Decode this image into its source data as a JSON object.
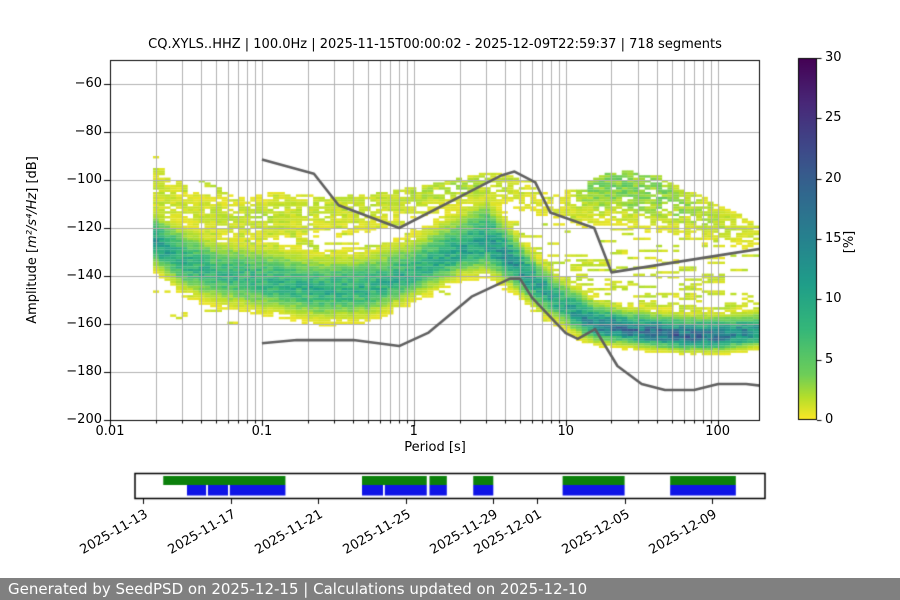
{
  "figure": {
    "title": "CQ.XYLS..HHZ | 100.0Hz | 2025-11-15T00:00:02 - 2025-12-09T22:59:37 | 718 segments",
    "footer": {
      "text": "Generated by SeedPSD on 2025-12-15 | Calculations updated on 2025-12-10",
      "bg_color": "#808080",
      "text_color": "#ffffff"
    }
  },
  "chart_data": {
    "type": "heatmap",
    "title": "CQ.XYLS..HHZ | 100.0Hz | 2025-11-15T00:00:02 - 2025-12-09T22:59:37 | 718 segments",
    "xlabel": "Period [s]",
    "ylabel": {
      "prefix": "Amplitude [",
      "math": "m²/s⁴/Hz",
      "suffix": "] [dB]"
    },
    "xlim": [
      0.01,
      190
    ],
    "ylim": [
      -200,
      -50
    ],
    "grid_color": "#b0b0b0",
    "x_ticks": [
      {
        "v": 0.01,
        "label": "0.01"
      },
      {
        "v": 0.1,
        "label": "0.1"
      },
      {
        "v": 1,
        "label": "1"
      },
      {
        "v": 10,
        "label": "10"
      },
      {
        "v": 100,
        "label": "100"
      }
    ],
    "y_ticks": [
      {
        "v": -60,
        "label": "−60"
      },
      {
        "v": -80,
        "label": "−80"
      },
      {
        "v": -100,
        "label": "−100"
      },
      {
        "v": -120,
        "label": "−120"
      },
      {
        "v": -140,
        "label": "−140"
      },
      {
        "v": -160,
        "label": "−160"
      },
      {
        "v": -180,
        "label": "−180"
      },
      {
        "v": -200,
        "label": "−200"
      }
    ],
    "colorbar": {
      "label": "[%]",
      "min": 0,
      "max": 30,
      "ticks": [
        0,
        5,
        10,
        15,
        20,
        25,
        30
      ],
      "viridis_stops": [
        [
          0.0,
          "#440154"
        ],
        [
          0.125,
          "#482878"
        ],
        [
          0.25,
          "#3e4989"
        ],
        [
          0.375,
          "#31688e"
        ],
        [
          0.5,
          "#26828e"
        ],
        [
          0.625,
          "#1f9e89"
        ],
        [
          0.75,
          "#35b779"
        ],
        [
          0.875,
          "#6ece58"
        ],
        [
          0.9375,
          "#b5de2b"
        ],
        [
          1.0,
          "#fde725"
        ]
      ]
    },
    "noise_models": {
      "color": "#606060",
      "width": 2.6,
      "nlnm": [
        [
          0.1,
          -168.0
        ],
        [
          0.17,
          -166.7
        ],
        [
          0.4,
          -166.7
        ],
        [
          0.8,
          -169.2
        ],
        [
          1.24,
          -163.7
        ],
        [
          2.4,
          -148.6
        ],
        [
          4.3,
          -141.1
        ],
        [
          5.0,
          -141.1
        ],
        [
          6.0,
          -149.0
        ],
        [
          10.0,
          -163.8
        ],
        [
          12.0,
          -166.2
        ],
        [
          15.6,
          -162.1
        ],
        [
          21.9,
          -177.5
        ],
        [
          31.6,
          -185.0
        ],
        [
          45.0,
          -187.5
        ],
        [
          70.0,
          -187.5
        ],
        [
          101.0,
          -185.0
        ],
        [
          154.0,
          -185.0
        ],
        [
          328.0,
          -187.5
        ]
      ],
      "nhnm": [
        [
          0.1,
          -91.5
        ],
        [
          0.22,
          -97.4
        ],
        [
          0.32,
          -110.5
        ],
        [
          0.8,
          -120.0
        ],
        [
          3.8,
          -98.0
        ],
        [
          4.6,
          -96.5
        ],
        [
          6.3,
          -101.0
        ],
        [
          7.9,
          -113.5
        ],
        [
          15.4,
          -120.0
        ],
        [
          20.0,
          -138.5
        ],
        [
          354.8,
          -126.0
        ]
      ]
    },
    "ppsd": {
      "seed": 7,
      "period_start_edge": 0.0192,
      "step_decades": 0.037628,
      "n_cols": 106,
      "db_bin": 1,
      "control": {
        "logp": [
          -1.7,
          -1.52,
          -1.3,
          -1.0,
          -0.6,
          -0.3,
          0.0,
          0.3,
          0.48,
          0.65,
          0.8,
          1.0,
          1.1,
          1.2,
          1.4,
          1.6,
          1.8,
          2.0,
          2.25
        ],
        "mode": [
          -126,
          -134,
          -139,
          -142,
          -146,
          -145,
          -139,
          -130,
          -126,
          -134,
          -143,
          -153,
          -157,
          -160.5,
          -162.5,
          -164,
          -165,
          -165,
          -163.5
        ],
        "amp": [
          12,
          9,
          8,
          8.5,
          9,
          9,
          9,
          10,
          11,
          13,
          12,
          10,
          13,
          15,
          17,
          18,
          18,
          17,
          13
        ],
        "sigma_hi": [
          6,
          7,
          7,
          7,
          7,
          7,
          7,
          8,
          9,
          6,
          5,
          5,
          5,
          4.5,
          4,
          4,
          4,
          4,
          4
        ],
        "sigma_lo": [
          5,
          6,
          6,
          6,
          6,
          6,
          5,
          5,
          6,
          5,
          5,
          4,
          4,
          3.5,
          3,
          3,
          3,
          3,
          3
        ],
        "upper_cap": [
          -90,
          -98,
          -102,
          -104,
          -107,
          -106,
          -103,
          -99,
          -97,
          -97,
          -99,
          -104,
          -104,
          -98,
          -96,
          -98,
          -104,
          -110,
          -118
        ],
        "lower_cap": [
          -158,
          -160,
          -160,
          -160,
          -158,
          -156,
          -152,
          -150,
          -150,
          -153,
          -158,
          -166,
          -168,
          -170,
          -171,
          -172,
          -172,
          -171,
          -170
        ],
        "mode2": [
          -103,
          -112,
          -115,
          -116,
          -112,
          -110,
          -106,
          -103,
          -102,
          -104,
          -110,
          -112,
          -106,
          -103,
          -103,
          -106,
          -112,
          -117,
          -122
        ],
        "sigma2": [
          5,
          5,
          5,
          6,
          7,
          7,
          6,
          5,
          5,
          5,
          4,
          5,
          7,
          8,
          8,
          8,
          7,
          6,
          5
        ],
        "amp2": [
          1.5,
          1.2,
          1.5,
          1.8,
          1.5,
          1.5,
          1.8,
          2.2,
          2.0,
          1.2,
          0.7,
          1.0,
          2.2,
          3.5,
          3.8,
          3.5,
          2.5,
          1.8,
          1.2
        ]
      },
      "diag_streaks": [
        {
          "lp1": -1.71,
          "db1": -95,
          "lp2": -0.55,
          "db2": -143
        },
        {
          "lp1": -1.6,
          "db1": -106,
          "lp2": -0.7,
          "db2": -139
        },
        {
          "lp1": -1.4,
          "db1": -100,
          "lp2": -0.5,
          "db2": -134
        }
      ]
    },
    "timeline": {
      "range": [
        "2025-11-12T15:00Z",
        "2025-12-11T10:00Z"
      ],
      "colors": {
        "green": "#0b800b",
        "blue": "#0f14e6"
      },
      "ticks": [
        {
          "date": "2025-11-13T00:00Z",
          "label": "2025-11-13"
        },
        {
          "date": "2025-11-17T00:00Z",
          "label": "2025-11-17"
        },
        {
          "date": "2025-11-21T00:00Z",
          "label": "2025-11-21"
        },
        {
          "date": "2025-11-25T00:00Z",
          "label": "2025-11-25"
        },
        {
          "date": "2025-11-29T00:00Z",
          "label": "2025-11-29"
        },
        {
          "date": "2025-12-01T00:00Z",
          "label": "2025-12-01"
        },
        {
          "date": "2025-12-05T00:00Z",
          "label": "2025-12-05"
        },
        {
          "date": "2025-12-09T00:00Z",
          "label": "2025-12-09"
        }
      ],
      "green_segments": [
        {
          "start": "2025-11-13T22:00Z",
          "end": "2025-11-19T12:00Z"
        },
        {
          "start": "2025-11-23T00:00Z",
          "end": "2025-11-25T23:00Z"
        },
        {
          "start": "2025-11-26T02:00Z",
          "end": "2025-11-26T21:00Z"
        },
        {
          "start": "2025-11-28T02:00Z",
          "end": "2025-11-29T00:00Z"
        },
        {
          "start": "2025-12-02T04:00Z",
          "end": "2025-12-05T00:00Z"
        },
        {
          "start": "2025-12-07T02:00Z",
          "end": "2025-12-10T02:00Z"
        }
      ],
      "blue_segments": [
        {
          "start": "2025-11-15T00:00Z",
          "end": "2025-11-15T21:00Z"
        },
        {
          "start": "2025-11-15T23:00Z",
          "end": "2025-11-16T21:00Z"
        },
        {
          "start": "2025-11-16T23:00Z",
          "end": "2025-11-19T12:00Z"
        },
        {
          "start": "2025-11-23T00:00Z",
          "end": "2025-11-23T23:00Z"
        },
        {
          "start": "2025-11-24T01:00Z",
          "end": "2025-11-25T23:00Z"
        },
        {
          "start": "2025-11-26T02:00Z",
          "end": "2025-11-26T21:00Z"
        },
        {
          "start": "2025-11-28T02:00Z",
          "end": "2025-11-29T00:00Z"
        },
        {
          "start": "2025-12-02T04:00Z",
          "end": "2025-12-05T00:00Z"
        },
        {
          "start": "2025-12-07T02:00Z",
          "end": "2025-12-10T02:00Z"
        }
      ]
    }
  }
}
